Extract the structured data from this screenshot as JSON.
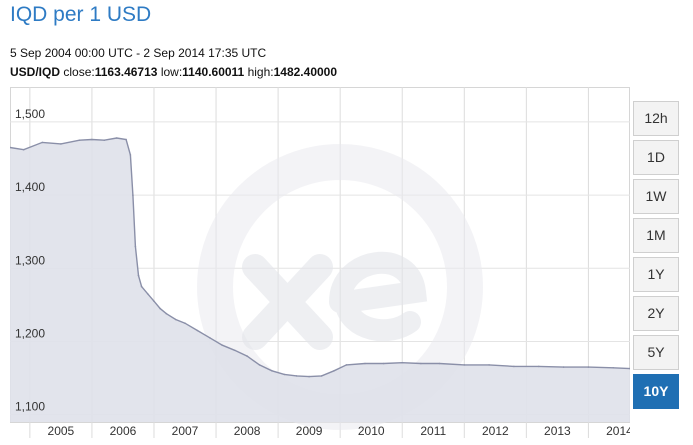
{
  "title": "IQD per 1 USD",
  "date_range": "5 Sep 2004 00:00 UTC - 2 Sep 2014 17:35 UTC",
  "stats": {
    "pair": "USD/IQD",
    "close_label": "close:",
    "close": "1163.46713",
    "low_label": "low:",
    "low": "1140.60011",
    "high_label": "high:",
    "high": "1482.40000"
  },
  "watermark": "xe-logo",
  "range_buttons": [
    "12h",
    "1D",
    "1W",
    "1M",
    "1Y",
    "2Y",
    "5Y",
    "10Y"
  ],
  "active_range": "10Y",
  "colors": {
    "title": "#2e7bc4",
    "line": "#8a8fa8",
    "area": "#dfe1ea",
    "active_button": "#1f6fb3"
  },
  "chart_data": {
    "type": "area",
    "title": "",
    "xlabel": "",
    "ylabel": "",
    "ylim": [
      1090,
      1545
    ],
    "xlim": [
      2004.68,
      2014.67
    ],
    "y_ticks": [
      "1,100",
      "1,200",
      "1,300",
      "1,400",
      "1,500"
    ],
    "y_tick_values": [
      1100,
      1200,
      1300,
      1400,
      1500
    ],
    "x_ticks": [
      "2005",
      "2006",
      "2007",
      "2008",
      "2009",
      "2010",
      "2011",
      "2012",
      "2013",
      "2014"
    ],
    "grid": true,
    "series": [
      {
        "x": [
          2004.68,
          2004.9,
          2005.2,
          2005.5,
          2005.8,
          2006.0,
          2006.2,
          2006.4,
          2006.55,
          2006.62,
          2006.66,
          2006.7,
          2006.75,
          2006.8,
          2006.9,
          2007.0,
          2007.1,
          2007.2,
          2007.35,
          2007.5,
          2007.7,
          2007.9,
          2008.1,
          2008.3,
          2008.5,
          2008.7,
          2008.9,
          2009.1,
          2009.3,
          2009.5,
          2009.7,
          2009.9,
          2010.1,
          2010.4,
          2010.7,
          2011.0,
          2011.3,
          2011.6,
          2012.0,
          2012.4,
          2012.8,
          2013.2,
          2013.6,
          2014.0,
          2014.4,
          2014.67
        ],
        "y": [
          1465,
          1462,
          1472,
          1470,
          1475,
          1476,
          1475,
          1478,
          1476,
          1455,
          1400,
          1330,
          1290,
          1275,
          1265,
          1255,
          1245,
          1238,
          1230,
          1225,
          1215,
          1205,
          1195,
          1188,
          1180,
          1168,
          1160,
          1155,
          1153,
          1152,
          1153,
          1160,
          1168,
          1170,
          1170,
          1171,
          1170,
          1170,
          1168,
          1168,
          1166,
          1166,
          1165,
          1165,
          1164,
          1163
        ]
      }
    ]
  }
}
